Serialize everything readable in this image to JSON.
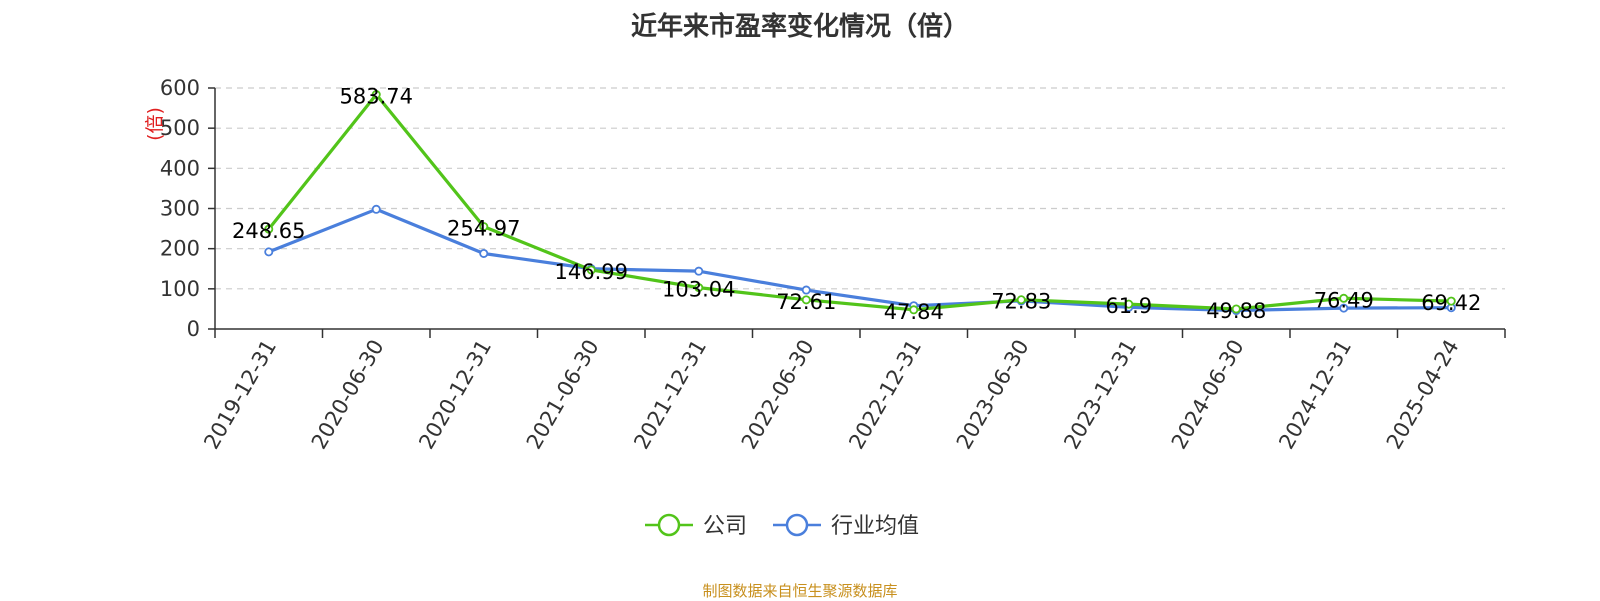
{
  "chart_data": {
    "type": "line",
    "title": "近年来市盈率变化情况（倍）",
    "ylabel": "(倍)",
    "xlabel": "",
    "ylim": [
      0,
      600
    ],
    "yticks": [
      0,
      100,
      200,
      300,
      400,
      500,
      600
    ],
    "grid": true,
    "legend_position": "bottom-center",
    "categories": [
      "2019-12-31",
      "2020-06-30",
      "2020-12-31",
      "2021-06-30",
      "2021-12-31",
      "2022-06-30",
      "2022-12-31",
      "2023-06-30",
      "2023-12-31",
      "2024-06-30",
      "2024-12-31",
      "2025-04-24"
    ],
    "series": [
      {
        "name": "公司",
        "color": "#52c41a",
        "values": [
          248.65,
          583.74,
          254.97,
          146.99,
          103.04,
          72.61,
          47.84,
          72.83,
          61.9,
          49.88,
          76.49,
          69.42
        ],
        "labels": [
          "248.65",
          "583.74",
          "254.97",
          "146.99",
          "103.04",
          "72.61",
          "47.84",
          "72.83",
          "61.9",
          "49.88",
          "76.49",
          "69.42"
        ]
      },
      {
        "name": "行业均值",
        "color": "#4a7fdc",
        "values": [
          192,
          298,
          188,
          150,
          144,
          97,
          58,
          70,
          54,
          46,
          52,
          53
        ]
      }
    ]
  },
  "footer": {
    "source": "制图数据来自恒生聚源数据库"
  }
}
